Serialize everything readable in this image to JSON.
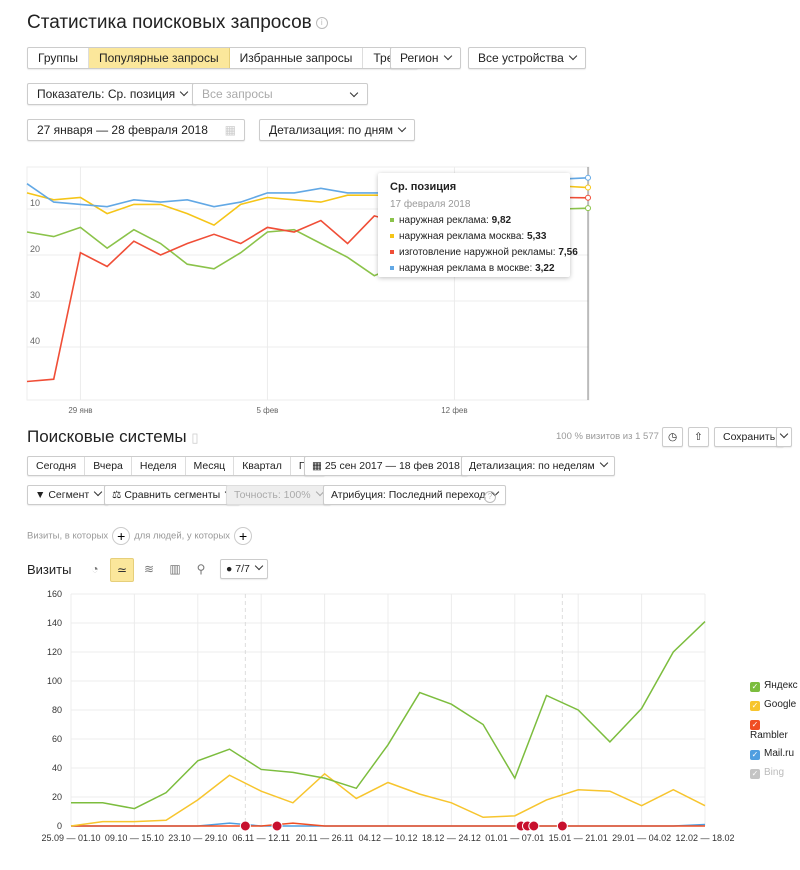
{
  "title": "Статистика поисковых запросов",
  "tabs": [
    {
      "label": "Группы"
    },
    {
      "label": "Популярные запросы",
      "active": true
    },
    {
      "label": "Избранные запросы"
    },
    {
      "label": "Тренд"
    }
  ],
  "region": "Регион",
  "devices": "Все устройства",
  "indicator": "Показатель: Ср. позиция",
  "queries_placeholder": "Все запросы",
  "date_range": "27 января — 28 февраля 2018",
  "detail": "Детализация: по дням",
  "tooltip": {
    "title": "Ср. позиция",
    "date": "17 февраля 2018",
    "rows": [
      {
        "label": "наружная реклама: ",
        "value": "9,82",
        "color": "#8bc34a"
      },
      {
        "label": "наружная реклама москва: ",
        "value": "5,33",
        "color": "#f5c518"
      },
      {
        "label": "изготовление наружной рекламы: ",
        "value": "7,56",
        "color": "#f04e37"
      },
      {
        "label": "наружная реклама в москве: ",
        "value": "3,22",
        "color": "#62a8e5"
      }
    ]
  },
  "se": {
    "title": "Поисковые системы",
    "visits_share": "100 % визитов из 1 577",
    "save": "Сохранить",
    "periods": [
      "Сегодня",
      "Вчера",
      "Неделя",
      "Месяц",
      "Квартал",
      "Год"
    ],
    "date_range": "25 сен 2017 — 18 фев 2018",
    "detail": "Детализация: по неделям",
    "segment": "Сегмент",
    "compare": "Сравнить сегменты",
    "accuracy": "Точность: 100%",
    "attribution": "Атрибуция: Последний переход",
    "filter_visits": "Визиты, в которых",
    "filter_people": "для людей, у которых",
    "visits_label": "Визиты",
    "series_count": "7/7",
    "legend": [
      {
        "name": "Яндекс",
        "color": "#7cbd3e"
      },
      {
        "name": "Google",
        "color": "#f7c52e"
      },
      {
        "name": "Rambler",
        "color": "#f04e23"
      },
      {
        "name": "Mail.ru",
        "color": "#4f9ee0"
      },
      {
        "name": "Bing",
        "color": "#c4c4c4",
        "disabled": true
      }
    ]
  },
  "chart_data": [
    {
      "type": "line",
      "title": "Ср. позиция",
      "ylim": [
        0,
        45
      ],
      "y_inverted": true,
      "yticks": [
        "10",
        "20",
        "30",
        "40"
      ],
      "x": [
        "27 янв",
        "28 янв",
        "29 янв",
        "30 янв",
        "31 янв",
        "1 фев",
        "2 фев",
        "3 фев",
        "4 фев",
        "5 фев",
        "6 фев",
        "7 фев",
        "8 фев",
        "9 фев",
        "10 фев",
        "11 фев",
        "12 фев",
        "13 фев",
        "14 фев",
        "15 фев",
        "16 фев",
        "17 фев"
      ],
      "xticks": [
        {
          "label": "29 янв",
          "index": 2
        },
        {
          "label": "5 фев",
          "index": 9
        },
        {
          "label": "12 фев",
          "index": 16
        }
      ],
      "series": [
        {
          "name": "наружная реклама",
          "color": "#8bc34a",
          "values": [
            15,
            16,
            14,
            18.5,
            14.5,
            17.5,
            22,
            23,
            19.5,
            15,
            14.5,
            17.5,
            20.5,
            24.5,
            22,
            19,
            16,
            14,
            12,
            11,
            10,
            9.82
          ]
        },
        {
          "name": "наружная реклама москва",
          "color": "#f5c518",
          "values": [
            6.5,
            8,
            7.5,
            11,
            9,
            9,
            11,
            13.5,
            9,
            7.5,
            8,
            8.5,
            7,
            7,
            7,
            6.5,
            6,
            6,
            5.5,
            5.5,
            5,
            5.33
          ]
        },
        {
          "name": "изготовление наружной рекламы",
          "color": "#f04e37",
          "values": [
            47.5,
            47,
            19.5,
            22.5,
            17,
            20,
            17.5,
            15.5,
            17.5,
            14,
            15,
            12.5,
            17.5,
            11.5,
            13,
            12,
            11,
            10,
            9,
            8.5,
            7.5,
            7.56
          ]
        },
        {
          "name": "наружная реклама в москве",
          "color": "#62a8e5",
          "values": [
            4.5,
            8.5,
            9,
            9.5,
            8,
            8.5,
            8,
            9.5,
            8.5,
            6.5,
            6.5,
            5.5,
            6.5,
            6.5,
            6.5,
            6,
            5,
            5,
            4.5,
            4,
            3.5,
            3.22
          ]
        }
      ]
    },
    {
      "type": "line",
      "title": "Визиты",
      "ylim": [
        0,
        160
      ],
      "yticks": [
        "0",
        "20",
        "40",
        "60",
        "80",
        "100",
        "120",
        "140",
        "160"
      ],
      "xticks": [
        "25.09 — 01.10",
        "09.10 — 15.10",
        "23.10 — 29.10",
        "06.11 — 12.11",
        "20.11 — 26.11",
        "04.12 — 10.12",
        "18.12 — 24.12",
        "01.01 — 07.01",
        "15.01 — 21.01",
        "29.01 — 04.02",
        "12.02 — 18.02"
      ],
      "series": [
        {
          "name": "Яндекс",
          "color": "#7cbd3e",
          "values": [
            16,
            16,
            12,
            23,
            45,
            53,
            39,
            37,
            33,
            26,
            56,
            92,
            84,
            70,
            33,
            90,
            80,
            58,
            81,
            120,
            141
          ]
        },
        {
          "name": "Google",
          "color": "#f7c52e",
          "values": [
            0,
            3,
            3,
            4,
            18,
            35,
            24,
            16,
            36,
            19,
            30,
            22,
            16,
            6,
            7,
            18,
            25,
            24,
            14,
            25,
            14
          ]
        },
        {
          "name": "Rambler",
          "color": "#f04e23",
          "values": [
            0,
            0,
            0,
            0,
            0,
            0,
            0,
            2,
            0,
            0,
            0,
            0,
            0,
            0,
            0,
            0,
            0,
            0,
            0,
            0,
            0
          ]
        },
        {
          "name": "Mail.ru",
          "color": "#4f9ee0",
          "values": [
            0,
            0,
            0,
            0,
            0,
            2,
            0,
            0,
            0,
            0,
            0,
            0,
            0,
            0,
            0,
            0,
            0,
            0,
            0,
            0,
            1
          ]
        }
      ]
    }
  ]
}
